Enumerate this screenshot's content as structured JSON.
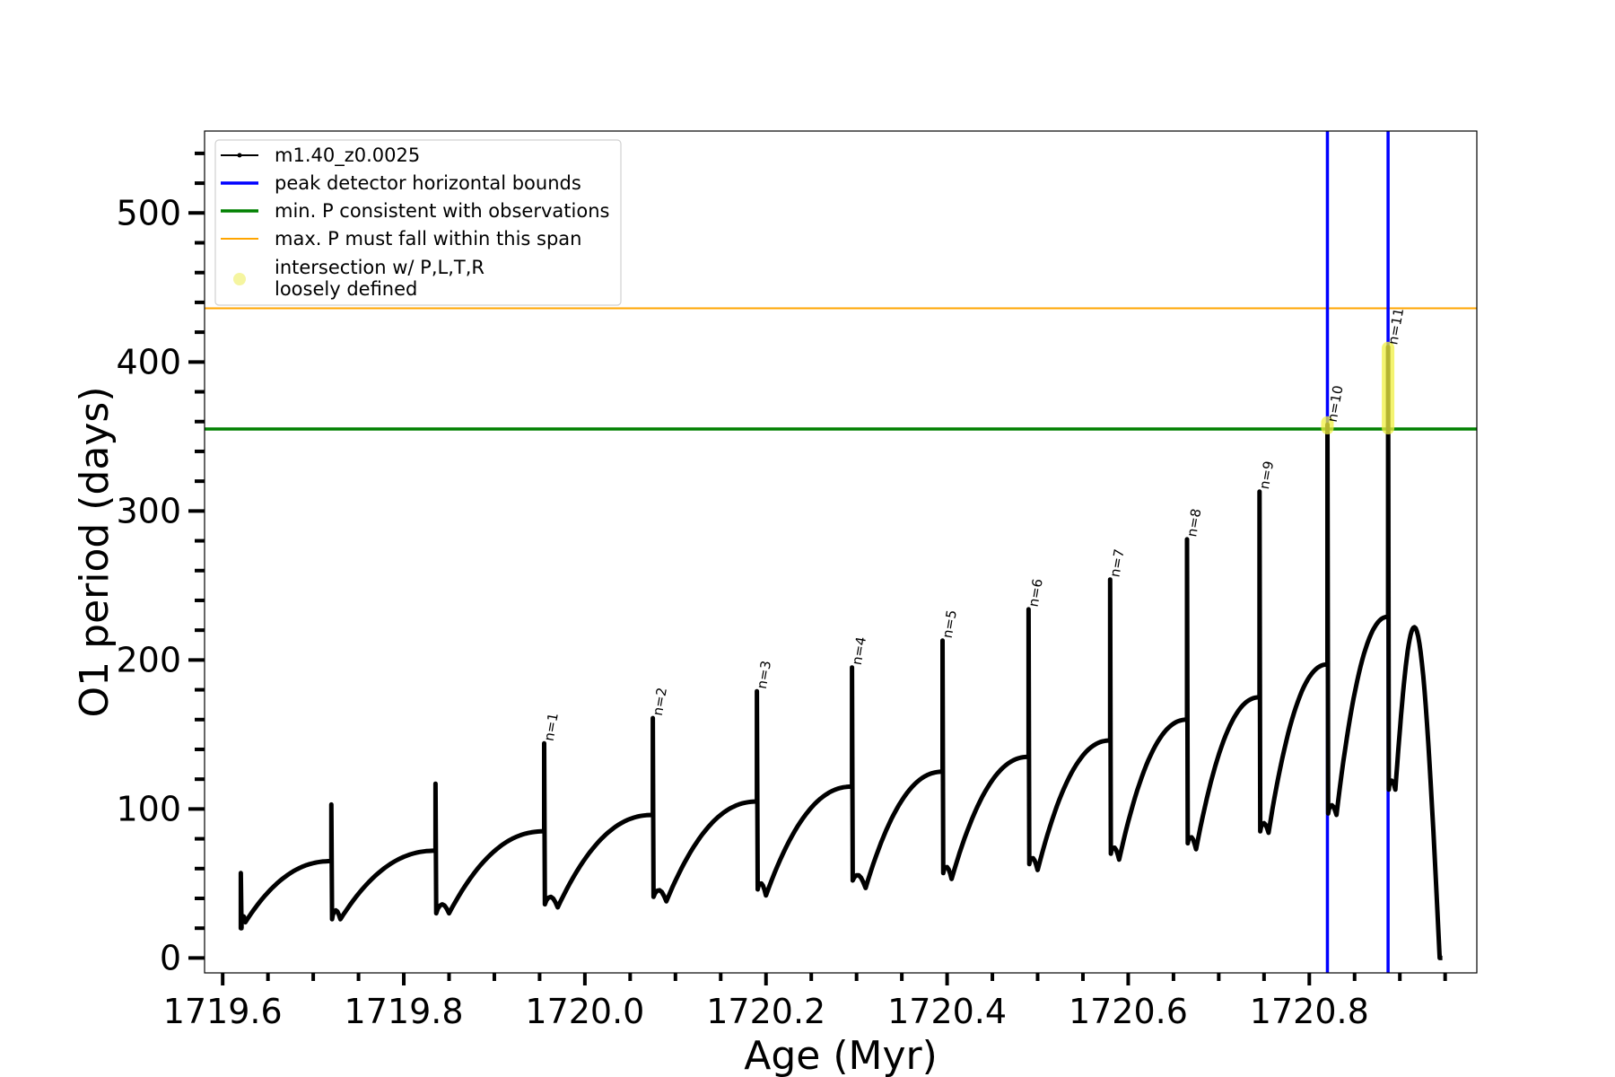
{
  "chart_data": {
    "type": "line",
    "xlabel": "Age (Myr)",
    "ylabel": "O1 period (days)",
    "xlim": [
      1719.58,
      1720.985
    ],
    "ylim": [
      -10,
      555
    ],
    "x_ticks": [
      1719.6,
      1719.8,
      1720.0,
      1720.2,
      1720.4,
      1720.6,
      1720.8
    ],
    "x_tick_labels": [
      "1719.6",
      "1719.8",
      "1720.0",
      "1720.2",
      "1720.4",
      "1720.6",
      "1720.8"
    ],
    "x_minor_step": 0.05,
    "y_ticks": [
      0,
      100,
      200,
      300,
      400,
      500
    ],
    "y_tick_labels": [
      "0",
      "100",
      "200",
      "300",
      "400",
      "500"
    ],
    "y_minor_step": 20,
    "grid": false,
    "legend_position": "top-left",
    "legend": [
      {
        "label": "m1.40_z0.0025",
        "kind": "line-marker",
        "color": "#000000"
      },
      {
        "label": "peak detector horizontal bounds",
        "kind": "line",
        "color": "#0000ff"
      },
      {
        "label": "min. P consistent with observations",
        "kind": "line",
        "color": "#008000"
      },
      {
        "label": "max. P must fall within this span",
        "kind": "thin-line",
        "color": "#ffa500"
      },
      {
        "label": "intersection w/ P,L,T,R",
        "label2": "loosely defined",
        "kind": "dot",
        "color": "#f5f5a0"
      }
    ],
    "series": [
      {
        "name": "m1.40_z0.0025",
        "color": "#000000",
        "pulses": [
          {
            "x0": 1719.62,
            "peak": 57,
            "base": 20,
            "low": 24,
            "xlow": 1719.625,
            "pre": 65
          },
          {
            "x0": 1719.72,
            "peak": 103,
            "base": 26,
            "low": 26,
            "xlow": 1719.73,
            "pre": 72
          },
          {
            "x0": 1719.835,
            "peak": 117,
            "base": 30,
            "low": 30,
            "xlow": 1719.85,
            "pre": 85
          },
          {
            "x0": 1719.955,
            "peak": 144,
            "base": 36,
            "low": 34,
            "xlow": 1719.97,
            "pre": 96
          },
          {
            "x0": 1720.075,
            "peak": 161,
            "base": 41,
            "low": 38,
            "xlow": 1720.09,
            "pre": 105
          },
          {
            "x0": 1720.19,
            "peak": 179,
            "base": 46,
            "low": 42,
            "xlow": 1720.2,
            "pre": 115
          },
          {
            "x0": 1720.295,
            "peak": 195,
            "base": 52,
            "low": 47,
            "xlow": 1720.31,
            "pre": 125
          },
          {
            "x0": 1720.395,
            "peak": 213,
            "base": 57,
            "low": 53,
            "xlow": 1720.405,
            "pre": 135
          },
          {
            "x0": 1720.49,
            "peak": 234,
            "base": 63,
            "low": 59,
            "xlow": 1720.5,
            "pre": 146
          },
          {
            "x0": 1720.58,
            "peak": 254,
            "base": 70,
            "low": 66,
            "xlow": 1720.59,
            "pre": 160
          },
          {
            "x0": 1720.665,
            "peak": 281,
            "base": 77,
            "low": 73,
            "xlow": 1720.675,
            "pre": 175
          },
          {
            "x0": 1720.745,
            "peak": 313,
            "base": 85,
            "low": 84,
            "xlow": 1720.755,
            "pre": 197
          },
          {
            "x0": 1720.82,
            "peak": 358,
            "base": 97,
            "low": 96,
            "xlow": 1720.83,
            "pre": 229
          },
          {
            "x0": 1720.887,
            "peak": 410,
            "base": 113,
            "low": 113,
            "xlow": 1720.895,
            "pre": 222
          }
        ],
        "start": {
          "x": 1719.62,
          "y": 42
        },
        "end": {
          "x": 1720.947,
          "y": 0
        }
      }
    ],
    "peak_labels": [
      {
        "text": "n=1",
        "x": 1719.955,
        "y": 144
      },
      {
        "text": "n=2",
        "x": 1720.075,
        "y": 161
      },
      {
        "text": "n=3",
        "x": 1720.19,
        "y": 179
      },
      {
        "text": "n=4",
        "x": 1720.295,
        "y": 195
      },
      {
        "text": "n=5",
        "x": 1720.395,
        "y": 213
      },
      {
        "text": "n=6",
        "x": 1720.49,
        "y": 234
      },
      {
        "text": "n=7",
        "x": 1720.58,
        "y": 254
      },
      {
        "text": "n=8",
        "x": 1720.665,
        "y": 281
      },
      {
        "text": "n=9",
        "x": 1720.745,
        "y": 313
      },
      {
        "text": "n=10",
        "x": 1720.82,
        "y": 358
      },
      {
        "text": "n=11",
        "x": 1720.887,
        "y": 410
      }
    ],
    "vertical_lines": [
      {
        "x": 1720.82,
        "color": "#0000ff",
        "label": "peak detector horizontal bounds"
      },
      {
        "x": 1720.887,
        "color": "#0000ff",
        "label": "peak detector horizontal bounds"
      }
    ],
    "horizontal_lines": [
      {
        "y": 355,
        "color": "#008000",
        "label": "min. P consistent with observations"
      },
      {
        "y": 436,
        "color": "#ffa500",
        "label": "max. P must fall within this span"
      }
    ],
    "intersections": [
      {
        "x": 1720.82,
        "y_min": 355,
        "y_max": 360
      },
      {
        "x": 1720.887,
        "y_min": 355,
        "y_max": 410
      }
    ]
  }
}
